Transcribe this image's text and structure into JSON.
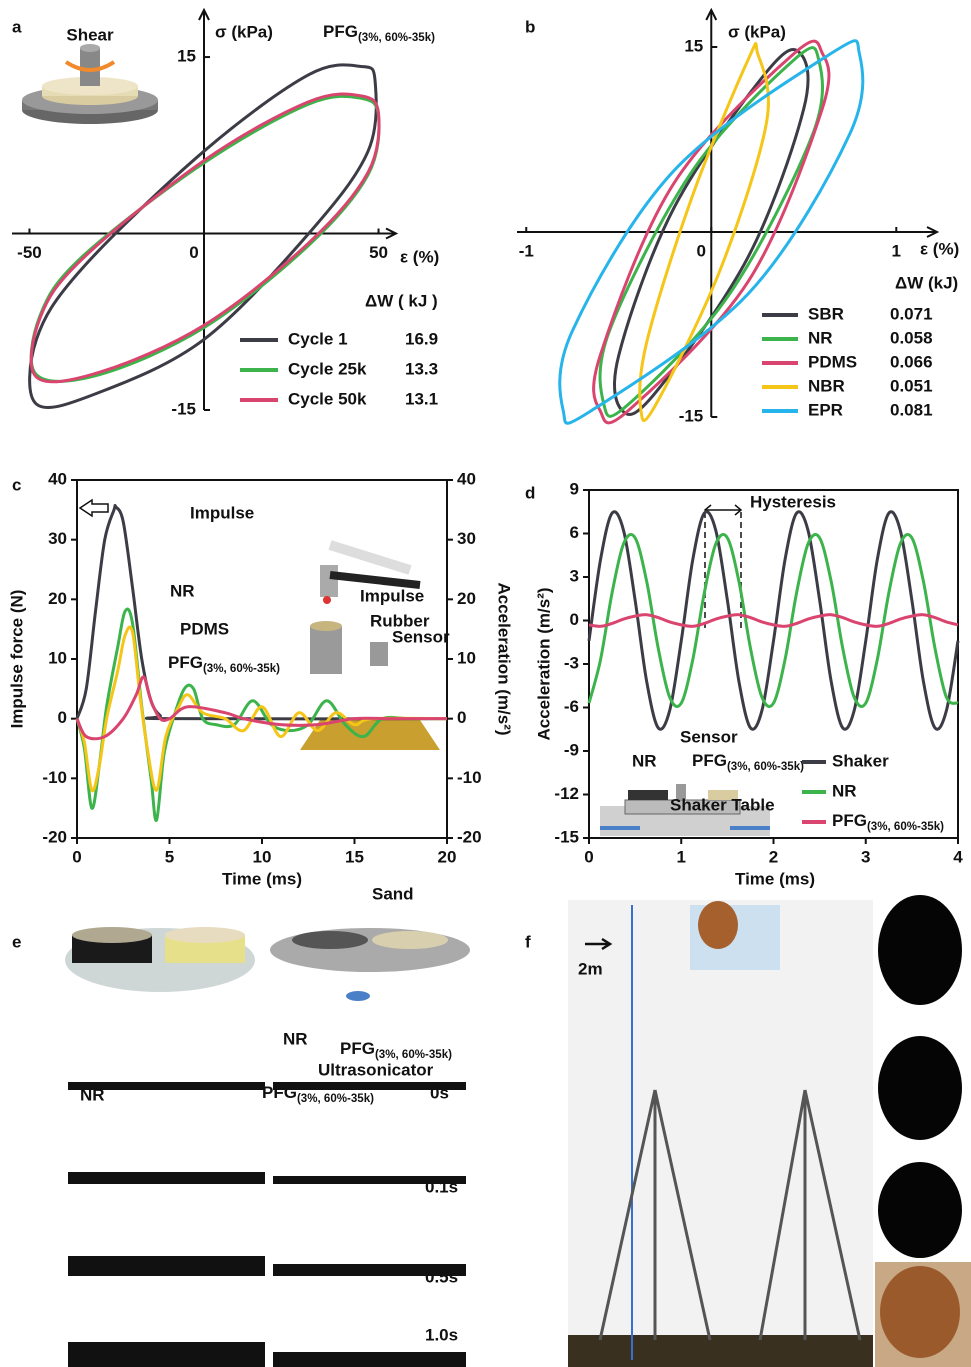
{
  "chart_data": [
    {
      "type": "loop",
      "title": "PFG(3%, 60%-35k)",
      "inset_label": "Shear",
      "y_label": "σ (kPa)",
      "x_label": "ε (%)",
      "xlim": [
        -55,
        55
      ],
      "ylim": [
        -15,
        19
      ],
      "xticks": [
        -50,
        0,
        50
      ],
      "yticks": [
        -15,
        15
      ],
      "legend_title": "ΔW ( kJ )",
      "series": [
        {
          "name": "Cycle 1",
          "color": "#3c3c46",
          "energy": 16.9,
          "x": [
            49,
            47,
            30,
            0,
            -30,
            -48,
            -48,
            -35,
            0,
            30,
            45
          ],
          "values": [
            13,
            7,
            0,
            -9,
            -13.5,
            -14.5,
            -9,
            -3,
            7,
            13.5,
            14.2
          ]
        },
        {
          "name": "Cycle 25k",
          "color": "#3cb44b",
          "energy": 13.3,
          "x": [
            50,
            47,
            30,
            0,
            -30,
            -48,
            -47,
            -35,
            0,
            30,
            45
          ],
          "values": [
            10,
            5,
            -1,
            -8,
            -12,
            -12,
            -7,
            -2,
            6,
            11,
            11.5
          ]
        },
        {
          "name": "Cycle 50k",
          "color": "#d9456e",
          "energy": 13.1,
          "x": [
            50,
            47,
            30,
            0,
            -30,
            -48,
            -47,
            -35,
            0,
            30,
            45
          ],
          "values": [
            10.2,
            5.2,
            -0.8,
            -7.8,
            -11.8,
            -12.2,
            -7.2,
            -2.2,
            6.2,
            11.2,
            11.7
          ]
        }
      ]
    },
    {
      "type": "loop",
      "y_label": "σ (kPa)",
      "x_label": "ε (%)",
      "xlim": [
        -1.05,
        1.22
      ],
      "ylim": [
        -15,
        18
      ],
      "xticks": [
        -1,
        0,
        1
      ],
      "yticks": [
        -15,
        15
      ],
      "legend_title": "ΔW (kJ)",
      "series": [
        {
          "name": "SBR",
          "color": "#3c3c46",
          "energy": 0.071,
          "x": [
            0.48,
            0.5,
            0.2,
            -0.3,
            -0.48,
            -0.5,
            -0.2,
            0.3
          ],
          "values": [
            14.5,
            10,
            -2,
            -13,
            -14.5,
            -10,
            2,
            13
          ]
        },
        {
          "name": "NR",
          "color": "#3cb44b",
          "energy": 0.058,
          "x": [
            0.58,
            0.55,
            0.1,
            -0.45,
            -0.58,
            -0.55,
            -0.1,
            0.45
          ],
          "values": [
            14,
            8,
            -5,
            -14,
            -14,
            -8,
            5,
            14
          ]
        },
        {
          "name": "PDMS",
          "color": "#d9456e",
          "energy": 0.066,
          "x": [
            0.6,
            0.6,
            0.2,
            -0.45,
            -0.6,
            -0.6,
            -0.2,
            0.45
          ],
          "values": [
            14.5,
            10,
            -4,
            -14.5,
            -14.5,
            -10,
            4,
            14.5
          ]
        },
        {
          "name": "NBR",
          "color": "#f5c518",
          "energy": 0.051,
          "x": [
            0.25,
            0.3,
            0.05,
            -0.3,
            -0.38,
            -0.35,
            -0.1,
            0.2
          ],
          "values": [
            14.5,
            9,
            -3,
            -14,
            -14.5,
            -9,
            3,
            14
          ]
        },
        {
          "name": "EPR",
          "color": "#27b4ea",
          "energy": 0.081,
          "x": [
            0.8,
            0.75,
            0.2,
            -0.65,
            -0.8,
            -0.75,
            -0.2,
            0.65
          ],
          "values": [
            14.5,
            8,
            -5,
            -14.5,
            -14.5,
            -8,
            5,
            14.5
          ]
        }
      ]
    },
    {
      "type": "line",
      "y_label": "Impulse force (N)",
      "y2_label": "Acceleration (m/s²)",
      "x_label": "Time (ms)",
      "xlim": [
        0,
        20
      ],
      "ylim": [
        -20,
        40
      ],
      "y2lim": [
        -20,
        40
      ],
      "xticks": [
        0,
        5,
        10,
        15,
        20
      ],
      "yticks": [
        -20,
        -10,
        0,
        10,
        20,
        30,
        40
      ],
      "y2ticks": [
        -20,
        -10,
        0,
        10,
        20,
        30,
        40
      ],
      "inset_labels": [
        "Impulse",
        "Rubber",
        "Sensor"
      ],
      "series": [
        {
          "name": "Impulse",
          "color": "#3c3c46",
          "axis": "y",
          "x": [
            0,
            0.5,
            1,
            1.5,
            2,
            2.1,
            2.5,
            3,
            3.5,
            4,
            4.5,
            5,
            20
          ],
          "values": [
            0,
            5,
            18,
            30,
            35,
            35.5,
            33,
            22,
            10,
            3,
            0.5,
            0,
            0
          ]
        },
        {
          "name": "NR",
          "color": "#3cb44b",
          "axis": "y2",
          "x": [
            0,
            0.4,
            0.8,
            1.2,
            1.6,
            2.2,
            2.6,
            3,
            3.5,
            4,
            4.3,
            4.7,
            5.2,
            5.8,
            6.3,
            6.8,
            7.5,
            8.5,
            9.5,
            10.5,
            11.5,
            12.5,
            13.5,
            14.5,
            15.5,
            16.5,
            18,
            20
          ],
          "values": [
            0,
            -5,
            -15,
            -8,
            2,
            12,
            18,
            16,
            2,
            -10,
            -17,
            -6,
            0,
            5,
            5,
            0,
            -1,
            -1,
            3,
            -1,
            -2,
            -1,
            3,
            -1,
            -3,
            0,
            0,
            0
          ]
        },
        {
          "name": "PDMS",
          "color": "#f5c518",
          "axis": "y2",
          "x": [
            0,
            0.4,
            0.8,
            1.2,
            1.6,
            2.2,
            2.6,
            3,
            3.4,
            3.8,
            4.3,
            4.8,
            5.5,
            6,
            6.8,
            8,
            9,
            10,
            11,
            12,
            13,
            14,
            15,
            16,
            20
          ],
          "values": [
            0,
            -4,
            -12,
            -8,
            0,
            8,
            14,
            14.5,
            4,
            -5,
            -12,
            -3,
            2,
            4,
            1,
            0,
            -2,
            2,
            -3,
            1,
            -2,
            1,
            -1,
            0,
            0
          ]
        },
        {
          "name": "PFG(3%, 60%-35k)",
          "color": "#d9456e",
          "axis": "y2",
          "x": [
            0,
            0.5,
            1.5,
            2.5,
            3.2,
            3.6,
            4,
            4.5,
            5,
            6,
            8,
            9,
            11,
            13,
            15,
            17,
            20
          ],
          "values": [
            0,
            -3,
            -3,
            0,
            4,
            7,
            3,
            0,
            0,
            2,
            1,
            0,
            -1,
            -1,
            0,
            0,
            0
          ]
        }
      ]
    },
    {
      "type": "line",
      "y_label": "Acceleration (m/s²)",
      "x_label": "Time (ms)",
      "annotation": "Hysteresis",
      "xlim": [
        0,
        4
      ],
      "ylim": [
        -15,
        9
      ],
      "xticks": [
        0,
        1,
        2,
        3,
        4
      ],
      "yticks": [
        -15,
        -12,
        -9,
        -6,
        -3,
        0,
        3,
        6,
        9
      ],
      "inset_labels": [
        "NR",
        "Sensor",
        "PFG(3%, 60%-35k)",
        "Shaker Table"
      ],
      "x": [
        0,
        0.125,
        0.25,
        0.375,
        0.5,
        0.625,
        0.75,
        0.875,
        1,
        1.125,
        1.25,
        1.375,
        1.5,
        1.625,
        1.75,
        1.875,
        2,
        2.125,
        2.25,
        2.375,
        2.5,
        2.625,
        2.75,
        2.875,
        3,
        3.125,
        3.25,
        3.375,
        3.5,
        3.625,
        3.75,
        3.875,
        4
      ],
      "series": [
        {
          "name": "Shaker",
          "color": "#3c3c46",
          "values": [
            -1.4,
            4.2,
            7.4,
            6.2,
            1.4,
            -4.2,
            -7.4,
            -6.2,
            -1.4,
            4.2,
            7.4,
            6.2,
            1.4,
            -4.2,
            -7.4,
            -6.2,
            -1.4,
            4.2,
            7.4,
            6.2,
            1.4,
            -4.2,
            -7.4,
            -6.2,
            -1.4,
            4.2,
            7.4,
            6.2,
            1.4,
            -4.2,
            -7.4,
            -6.2,
            -1.4
          ]
        },
        {
          "name": "NR",
          "color": "#3cb44b",
          "values": [
            -5.7,
            -2.7,
            1.9,
            5.3,
            5.7,
            2.7,
            -1.9,
            -5.3,
            -5.7,
            -2.7,
            1.9,
            5.3,
            5.7,
            2.7,
            -1.9,
            -5.3,
            -5.7,
            -2.7,
            1.9,
            5.3,
            5.7,
            2.7,
            -1.9,
            -5.3,
            -5.7,
            -2.7,
            1.9,
            5.3,
            5.7,
            2.7,
            -1.9,
            -5.3,
            -5.7
          ]
        },
        {
          "name": "PFG(3%, 60%-35k)",
          "color": "#d9456e",
          "values": [
            -0.3,
            -0.4,
            -0.2,
            0.1,
            0.3,
            0.4,
            0.2,
            -0.1,
            -0.3,
            -0.4,
            -0.2,
            0.1,
            0.3,
            0.4,
            0.2,
            -0.1,
            -0.3,
            -0.4,
            -0.2,
            0.1,
            0.3,
            0.4,
            0.2,
            -0.1,
            -0.3,
            -0.4,
            -0.2,
            0.1,
            0.3,
            0.4,
            0.2,
            -0.1,
            -0.3
          ]
        }
      ]
    }
  ],
  "figure": {
    "panel_labels": [
      "a",
      "b",
      "c",
      "d",
      "e",
      "f"
    ],
    "e": {
      "setup_labels": [
        "Sand",
        "NR",
        "PFG(3%, 60%-35k)",
        "Ultrasonicator"
      ],
      "column_labels": [
        "NR",
        "PFG(3%, 60%-35k)"
      ],
      "times": [
        "0s",
        "0.1s",
        "0.5s",
        "1.0s"
      ]
    },
    "f": {
      "height": "2m"
    }
  }
}
